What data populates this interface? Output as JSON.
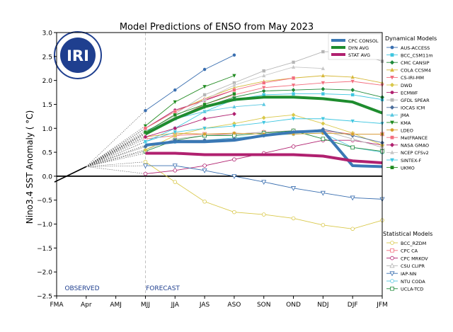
{
  "chart_data": {
    "type": "line",
    "title": "Model Predictions of ENSO from May 2023",
    "ylabel": "Nino3.4 SST Anomaly ( °C)",
    "xlabel": "",
    "categories": [
      "FMA",
      "Apr",
      "AMJ",
      "MJJ",
      "JJA",
      "JAS",
      "ASO",
      "SON",
      "OND",
      "NDJ",
      "DJF",
      "JFM"
    ],
    "ylim": [
      -2.5,
      3.0
    ],
    "yticks": [
      -2.5,
      -2.0,
      -1.5,
      -1.0,
      -0.5,
      0.0,
      0.5,
      1.0,
      1.5,
      2.0,
      2.5,
      3.0
    ],
    "ytick_labels": [
      "−2.5",
      "−2.0",
      "−1.5",
      "−1.0",
      "−0.5",
      "0.0",
      "0.5",
      "1.0",
      "1.5",
      "2.0",
      "2.5",
      "3.0"
    ],
    "observed": {
      "label": "OBSERVED",
      "x": [
        "FMA",
        "Apr"
      ],
      "values": [
        -0.1,
        0.2
      ]
    },
    "forecast_label": "FORECAST",
    "logo_text": "IRI",
    "summary_series": [
      {
        "name": "CPC CONSOL",
        "color": "#3a78b5",
        "values": [
          null,
          null,
          null,
          0.65,
          0.72,
          0.72,
          0.75,
          0.85,
          0.92,
          0.95,
          0.22,
          0.2
        ]
      },
      {
        "name": "DYN AVG",
        "color": "#1e8c2e",
        "values": [
          null,
          null,
          null,
          0.88,
          1.2,
          1.45,
          1.6,
          1.65,
          1.65,
          1.62,
          1.55,
          1.32
        ]
      },
      {
        "name": "STAT AVG",
        "color": "#b0206f",
        "values": [
          null,
          null,
          null,
          0.48,
          0.48,
          0.45,
          0.45,
          0.45,
          0.45,
          0.42,
          0.32,
          0.28
        ]
      }
    ],
    "dynamical_title": "Dynamical Models",
    "dynamical_series": [
      {
        "name": "AUS-ACCESS",
        "color": "#3a6fb0",
        "marker": "circle",
        "values": [
          null,
          null,
          null,
          1.37,
          1.8,
          2.23,
          2.53,
          null,
          null,
          null,
          null,
          null
        ]
      },
      {
        "name": "BCC_CSM11m",
        "color": "#3ec6e0",
        "marker": "square",
        "values": [
          null,
          null,
          null,
          0.72,
          1.0,
          1.35,
          1.6,
          1.7,
          1.72,
          1.72,
          1.7,
          1.6
        ]
      },
      {
        "name": "CMC CANSIP",
        "color": "#1f8a3a",
        "marker": "diamond",
        "values": [
          null,
          null,
          null,
          0.9,
          1.22,
          1.45,
          1.65,
          1.78,
          1.8,
          1.82,
          1.8,
          1.65
        ]
      },
      {
        "name": "COLA CCSM4",
        "color": "#d6b83a",
        "marker": "triangle-up",
        "values": [
          null,
          null,
          null,
          1.0,
          1.35,
          1.62,
          1.85,
          1.98,
          2.05,
          2.1,
          2.07,
          1.95
        ]
      },
      {
        "name": "CS-IRI-MM",
        "color": "#f26d7d",
        "marker": "triangle-down",
        "values": [
          null,
          null,
          null,
          0.85,
          1.2,
          1.5,
          1.7,
          1.85,
          1.9,
          1.95,
          1.98,
          1.9
        ]
      },
      {
        "name": "DWD",
        "color": "#d9c84a",
        "marker": "diamond",
        "values": [
          null,
          null,
          null,
          0.55,
          0.85,
          1.0,
          1.1,
          1.22,
          1.28,
          1.1,
          0.9,
          0.65
        ]
      },
      {
        "name": "ECMWF",
        "color": "#b0206f",
        "marker": "circle",
        "values": [
          null,
          null,
          null,
          1.0,
          1.38,
          1.58,
          1.8,
          null,
          null,
          null,
          null,
          null
        ]
      },
      {
        "name": "GFDL SPEAR",
        "color": "#b5b5b5",
        "marker": "square",
        "values": [
          null,
          null,
          null,
          0.9,
          1.3,
          1.7,
          1.95,
          2.2,
          2.38,
          2.6,
          2.6,
          2.4
        ]
      },
      {
        "name": "IOCAS ICM",
        "color": "#4a6d9b",
        "marker": "diamond",
        "values": [
          null,
          null,
          null,
          0.62,
          0.75,
          0.75,
          0.78,
          0.85,
          0.92,
          0.98,
          0.85,
          0.7
        ]
      },
      {
        "name": "JMA",
        "color": "#58c7e0",
        "marker": "triangle-up",
        "values": [
          null,
          null,
          null,
          0.95,
          1.2,
          1.35,
          1.45,
          1.5,
          null,
          null,
          null,
          null
        ]
      },
      {
        "name": "KMA",
        "color": "#1f8a1f",
        "marker": "triangle-down",
        "values": [
          null,
          null,
          null,
          1.05,
          1.55,
          1.87,
          2.1,
          null,
          null,
          null,
          null,
          null
        ]
      },
      {
        "name": "LDEO",
        "color": "#d6a030",
        "marker": "circle",
        "values": [
          null,
          null,
          null,
          0.82,
          0.9,
          0.88,
          0.9,
          0.88,
          0.88,
          0.9,
          0.88,
          0.88
        ]
      },
      {
        "name": "MetFRANCE",
        "color": "#f26d7d",
        "marker": "square",
        "values": [
          null,
          null,
          null,
          1.0,
          1.35,
          1.6,
          1.8,
          1.95,
          2.05,
          null,
          null,
          null
        ]
      },
      {
        "name": "NASA GMAO",
        "color": "#b0206f",
        "marker": "diamond",
        "values": [
          null,
          null,
          null,
          0.82,
          1.0,
          1.2,
          1.3,
          null,
          null,
          null,
          null,
          null
        ]
      },
      {
        "name": "NCEP CFSv2",
        "color": "#c7c7c7",
        "marker": "triangle-up",
        "values": [
          null,
          null,
          null,
          0.9,
          1.25,
          1.6,
          1.9,
          2.1,
          2.28,
          2.25,
          null,
          null
        ]
      },
      {
        "name": "SINTEX-F",
        "color": "#3ec6e0",
        "marker": "triangle-down",
        "values": [
          null,
          null,
          null,
          0.72,
          0.92,
          1.0,
          1.05,
          1.12,
          1.2,
          1.2,
          1.15,
          1.1
        ]
      },
      {
        "name": "UKMO",
        "color": "#1f8a1f",
        "marker": "square",
        "values": [
          null,
          null,
          null,
          0.92,
          1.28,
          1.5,
          1.72,
          null,
          null,
          null,
          null,
          null
        ]
      }
    ],
    "statistical_title": "Statistical Models",
    "statistical_series": [
      {
        "name": "BCC_RZDM",
        "color": "#d9c84a",
        "marker": "circle",
        "values": [
          null,
          null,
          null,
          0.3,
          -0.12,
          -0.53,
          -0.75,
          -0.8,
          -0.88,
          -1.02,
          -1.1,
          -0.92
        ]
      },
      {
        "name": "CPC CA",
        "color": "#f26d7d",
        "marker": "square",
        "values": [
          null,
          null,
          null,
          0.78,
          0.85,
          0.88,
          0.88,
          0.92,
          0.95,
          0.95,
          0.88,
          0.88
        ]
      },
      {
        "name": "CPC MRKOV",
        "color": "#b0206f",
        "marker": "circle",
        "values": [
          null,
          null,
          null,
          0.05,
          0.12,
          0.22,
          0.35,
          0.48,
          0.62,
          0.75,
          0.75,
          0.65
        ]
      },
      {
        "name": "CSU CLIPR",
        "color": "#b5b5b5",
        "marker": "triangle-up",
        "values": [
          null,
          null,
          null,
          0.55,
          0.78,
          0.85,
          0.88,
          0.92,
          0.95,
          0.95,
          0.78,
          0.6
        ]
      },
      {
        "name": "IAP-NN",
        "color": "#3a6fb0",
        "marker": "triangle-down",
        "values": [
          null,
          null,
          null,
          0.22,
          0.22,
          0.12,
          0.0,
          -0.12,
          -0.25,
          -0.35,
          -0.45,
          -0.48
        ]
      },
      {
        "name": "NTU CODA",
        "color": "#58c7e0",
        "marker": "circle",
        "values": [
          null,
          null,
          null,
          0.62,
          0.72,
          0.75,
          0.8,
          0.85,
          0.88,
          0.9,
          0.6,
          0.5
        ]
      },
      {
        "name": "UCLA-TCD",
        "color": "#1f8a3a",
        "marker": "square",
        "values": [
          null,
          null,
          null,
          0.52,
          0.75,
          0.85,
          0.85,
          0.9,
          0.95,
          0.78,
          0.6,
          0.52
        ]
      }
    ]
  }
}
